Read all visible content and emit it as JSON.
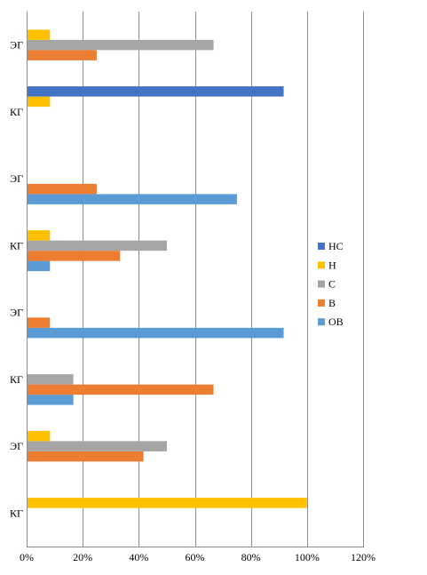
{
  "chart_data": {
    "type": "bar",
    "orientation": "horizontal",
    "title": "",
    "xlabel": "",
    "ylabel": "",
    "xlim": [
      0,
      1.2
    ],
    "x_ticks": [
      0,
      0.2,
      0.4,
      0.6,
      0.8,
      1.0,
      1.2
    ],
    "x_tick_labels": [
      "0%",
      "20%",
      "40%",
      "60%",
      "80%",
      "100%",
      "120%"
    ],
    "grid": "vertical",
    "legend_position": "right",
    "categories": [
      "КГ",
      "ЭГ",
      "КГ",
      "ЭГ",
      "КГ",
      "ЭГ",
      "КГ",
      "ЭГ"
    ],
    "series": [
      {
        "name": "ОВ",
        "color": "#5B9BD5",
        "values": [
          0,
          0,
          0.1667,
          0.9167,
          0.0833,
          0.75,
          0,
          0
        ]
      },
      {
        "name": "В",
        "color": "#ED7D31",
        "values": [
          0,
          0.4167,
          0.6667,
          0.0833,
          0.3333,
          0.25,
          0,
          0.25
        ]
      },
      {
        "name": "С",
        "color": "#A5A5A5",
        "values": [
          0,
          0.5,
          0.1667,
          0,
          0.5,
          0,
          0,
          0.6667
        ]
      },
      {
        "name": "Н",
        "color": "#FFC000",
        "values": [
          1.0,
          0.0833,
          0,
          0,
          0.0833,
          0,
          0.0833,
          0.0833
        ]
      },
      {
        "name": "НС",
        "color": "#4472C4",
        "values": [
          0,
          0,
          0,
          0,
          0,
          0,
          0.9167,
          0
        ]
      }
    ],
    "legend_order": [
      "НС",
      "Н",
      "С",
      "В",
      "ОВ"
    ]
  }
}
